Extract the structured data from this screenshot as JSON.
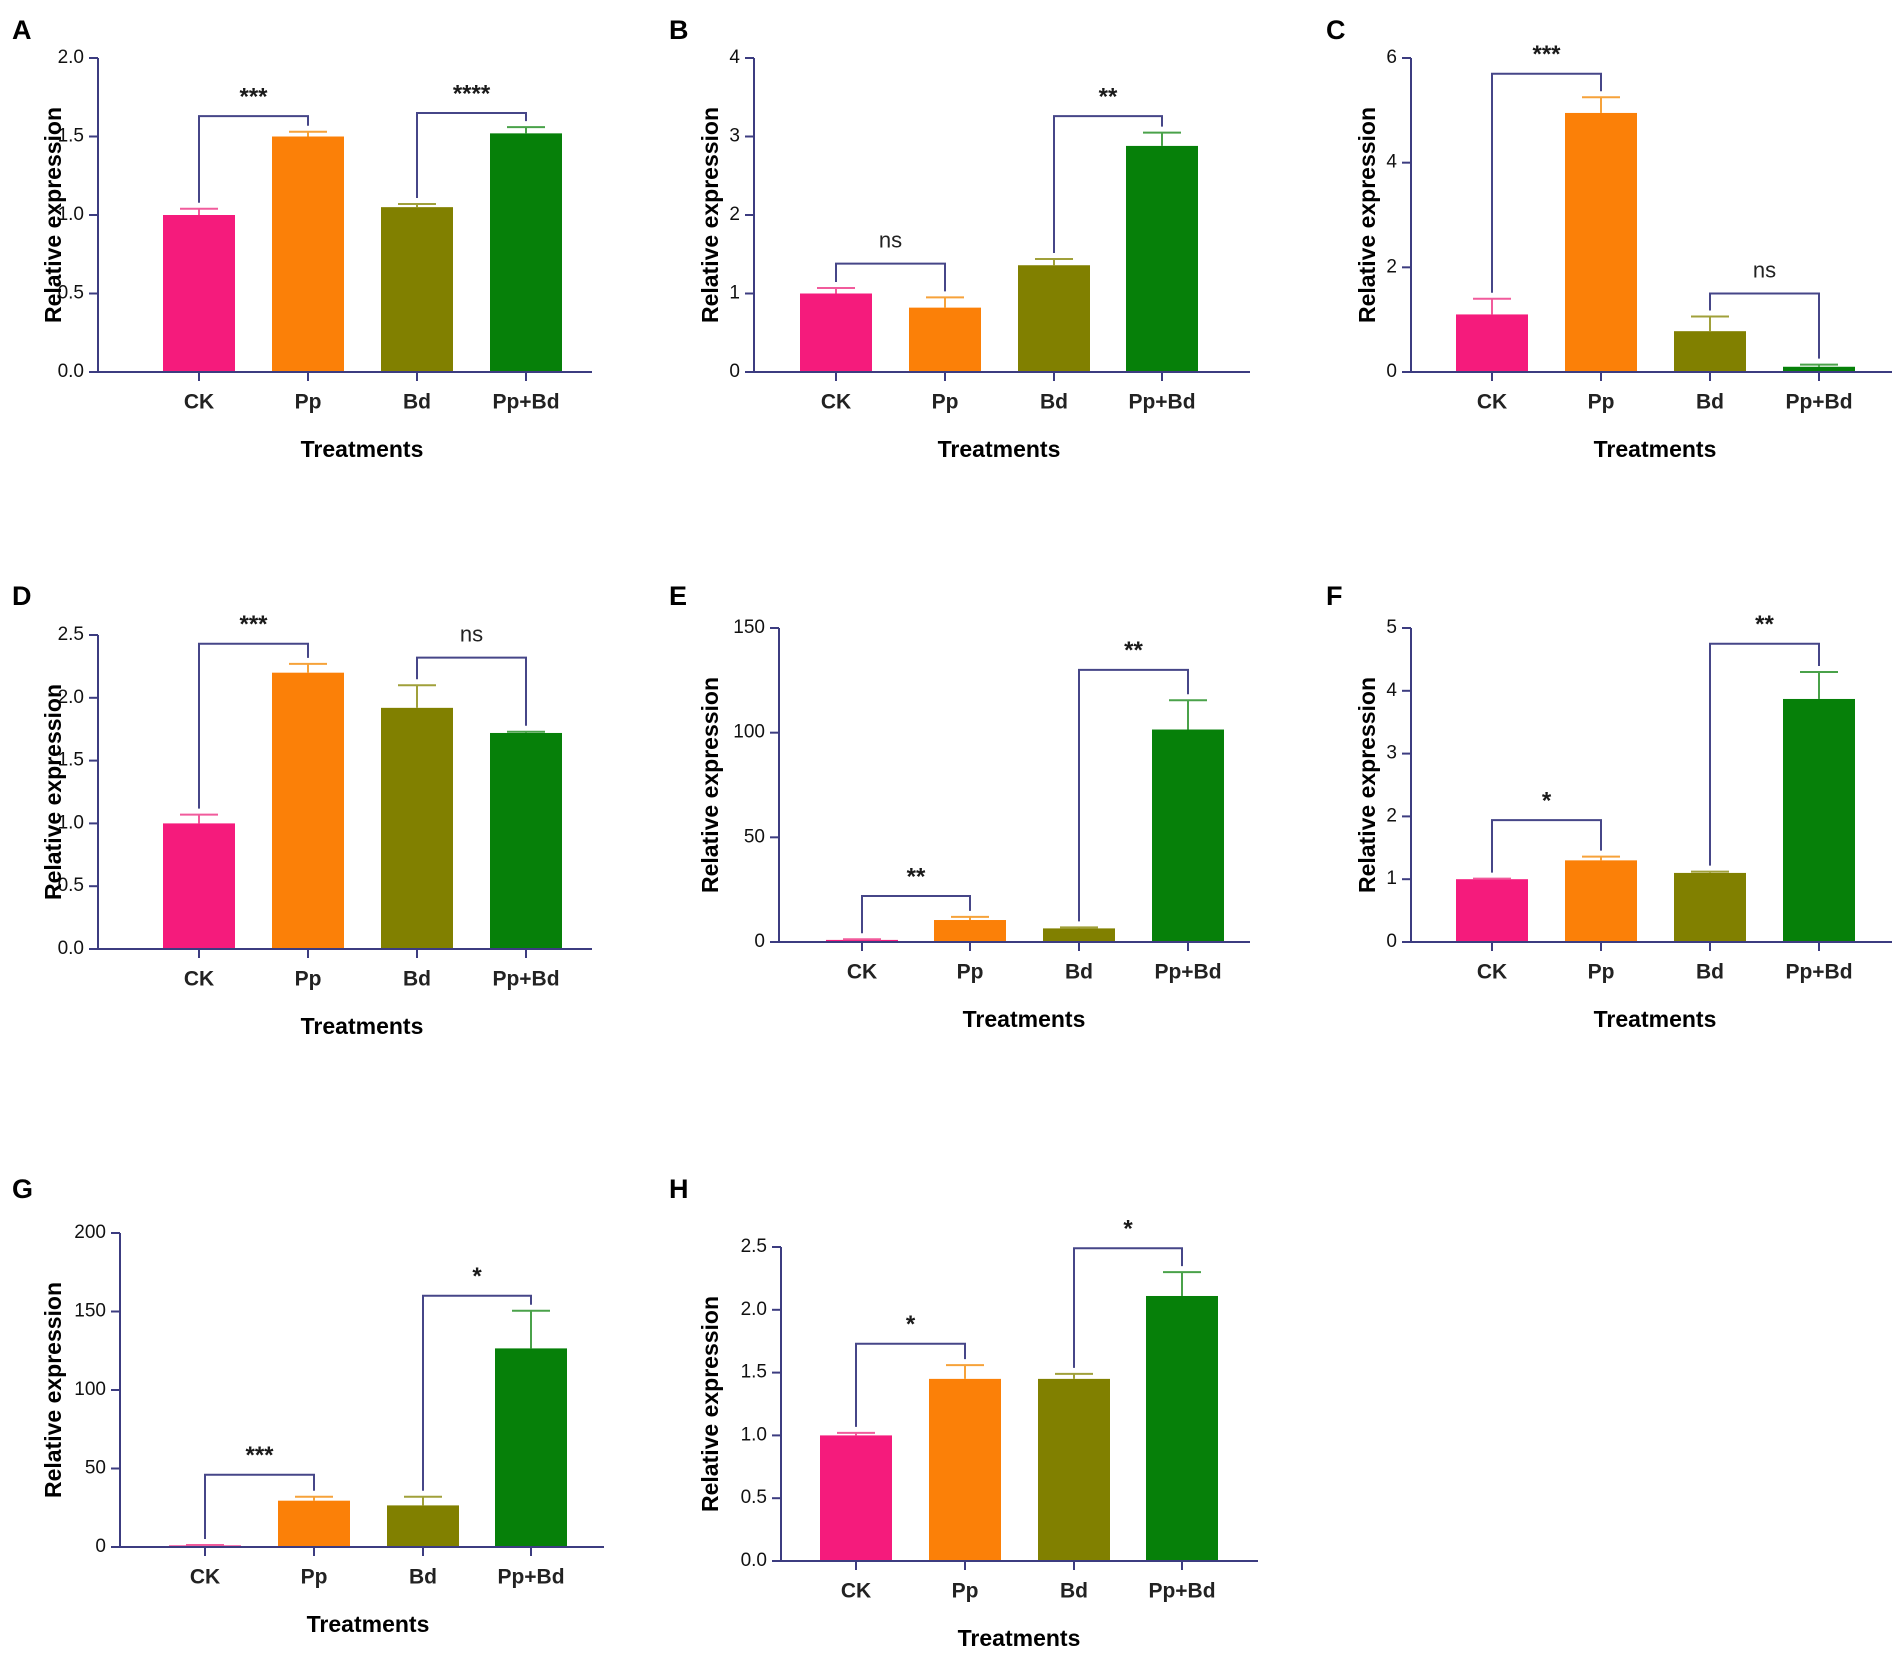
{
  "figure": {
    "colors": {
      "CK": "#f51b7c",
      "Pp": "#fb8008",
      "Bd": "#818000",
      "Pp+Bd": "#068009",
      "CK_err": "#f15b9c",
      "Pp_err": "#f6a23a",
      "Bd_err": "#a0a03a",
      "Pp+Bd_err": "#4aa24a",
      "axis": "#3c3c80",
      "bracket": "#464688"
    }
  },
  "chart_data": [
    {
      "panel": "A",
      "type": "bar",
      "categories": [
        "CK",
        "Pp",
        "Bd",
        "Pp+Bd"
      ],
      "values": [
        1.0,
        1.5,
        1.05,
        1.52
      ],
      "errors": [
        0.04,
        0.03,
        0.02,
        0.04
      ],
      "yticks": [
        0.0,
        0.5,
        1.0,
        1.5,
        2.0
      ],
      "ytick_labels": [
        "0.0",
        "0.5",
        "1.0",
        "1.5",
        "2.0"
      ],
      "ylim": [
        0,
        2.0
      ],
      "xlabel": "Treatments",
      "ylabel": "Relative expression",
      "significance": [
        {
          "from": "CK",
          "to": "Pp",
          "label": "***",
          "top": 1.63
        },
        {
          "from": "Bd",
          "to": "Pp+Bd",
          "label": "****",
          "top": 1.65
        }
      ]
    },
    {
      "panel": "B",
      "type": "bar",
      "categories": [
        "CK",
        "Pp",
        "Bd",
        "Pp+Bd"
      ],
      "values": [
        1.0,
        0.82,
        1.36,
        2.88
      ],
      "errors": [
        0.07,
        0.13,
        0.08,
        0.17
      ],
      "yticks": [
        0,
        1,
        2,
        3,
        4
      ],
      "ytick_labels": [
        "0",
        "1",
        "2",
        "3",
        "4"
      ],
      "ylim": [
        0,
        4
      ],
      "xlabel": "Treatments",
      "ylabel": "Relative expression",
      "significance": [
        {
          "from": "CK",
          "to": "Pp",
          "label": "ns",
          "top": 1.38
        },
        {
          "from": "Bd",
          "to": "Pp+Bd",
          "label": "**",
          "top": 3.26
        }
      ]
    },
    {
      "panel": "C",
      "type": "bar",
      "categories": [
        "CK",
        "Pp",
        "Bd",
        "Pp+Bd"
      ],
      "values": [
        1.1,
        4.95,
        0.78,
        0.1
      ],
      "errors": [
        0.3,
        0.3,
        0.28,
        0.04
      ],
      "yticks": [
        0,
        2,
        4,
        6
      ],
      "ytick_labels": [
        "0",
        "2",
        "4",
        "6"
      ],
      "ylim": [
        0,
        6
      ],
      "xlabel": "Treatments",
      "ylabel": "Relative expression",
      "significance": [
        {
          "from": "CK",
          "to": "Pp",
          "label": "***",
          "top": 5.7
        },
        {
          "from": "Bd",
          "to": "Pp+Bd",
          "label": "ns",
          "top": 1.5
        }
      ]
    },
    {
      "panel": "D",
      "type": "bar",
      "categories": [
        "CK",
        "Pp",
        "Bd",
        "Pp+Bd"
      ],
      "values": [
        1.0,
        2.2,
        1.92,
        1.72
      ],
      "errors": [
        0.07,
        0.07,
        0.18,
        0.01
      ],
      "yticks": [
        0.0,
        0.5,
        1.0,
        1.5,
        2.0,
        2.5
      ],
      "ytick_labels": [
        "0.0",
        "0.5",
        "1.0",
        "1.5",
        "2.0",
        "2.5"
      ],
      "ylim": [
        0,
        2.5
      ],
      "xlabel": "Treatments",
      "ylabel": "Relative expression",
      "significance": [
        {
          "from": "CK",
          "to": "Pp",
          "label": "***",
          "top": 2.43
        },
        {
          "from": "Bd",
          "to": "Pp+Bd",
          "label": "ns",
          "top": 2.32
        }
      ]
    },
    {
      "panel": "E",
      "type": "bar",
      "categories": [
        "CK",
        "Pp",
        "Bd",
        "Pp+Bd"
      ],
      "values": [
        1.0,
        10.5,
        6.5,
        101.5
      ],
      "errors": [
        0.3,
        1.5,
        0.5,
        14.0
      ],
      "yticks": [
        0,
        50,
        100,
        150
      ],
      "ytick_labels": [
        "0",
        "50",
        "100",
        "150"
      ],
      "ylim": [
        0,
        150
      ],
      "xlabel": "Treatments",
      "ylabel": "Relative expression",
      "significance": [
        {
          "from": "CK",
          "to": "Pp",
          "label": "**",
          "top": 22
        },
        {
          "from": "Bd",
          "to": "Pp+Bd",
          "label": "**",
          "top": 130
        }
      ]
    },
    {
      "panel": "F",
      "type": "bar",
      "categories": [
        "CK",
        "Pp",
        "Bd",
        "Pp+Bd"
      ],
      "values": [
        1.0,
        1.3,
        1.1,
        3.87
      ],
      "errors": [
        0.01,
        0.06,
        0.02,
        0.43
      ],
      "yticks": [
        0,
        1,
        2,
        3,
        4,
        5
      ],
      "ytick_labels": [
        "0",
        "1",
        "2",
        "3",
        "4",
        "5"
      ],
      "ylim": [
        0,
        5
      ],
      "xlabel": "Treatments",
      "ylabel": "Relative expression",
      "significance": [
        {
          "from": "CK",
          "to": "Pp",
          "label": "*",
          "top": 1.94
        },
        {
          "from": "Bd",
          "to": "Pp+Bd",
          "label": "**",
          "top": 4.75
        }
      ]
    },
    {
      "panel": "G",
      "type": "bar",
      "categories": [
        "CK",
        "Pp",
        "Bd",
        "Pp+Bd"
      ],
      "values": [
        1.0,
        29.5,
        26.5,
        126.5
      ],
      "errors": [
        0.3,
        2.5,
        5.5,
        24.0
      ],
      "yticks": [
        0,
        50,
        100,
        150,
        200
      ],
      "ytick_labels": [
        "0",
        "50",
        "100",
        "150",
        "200"
      ],
      "ylim": [
        0,
        200
      ],
      "xlabel": "Treatments",
      "ylabel": "Relative expression",
      "significance": [
        {
          "from": "CK",
          "to": "Pp",
          "label": "***",
          "top": 46
        },
        {
          "from": "Bd",
          "to": "Pp+Bd",
          "label": "*",
          "top": 160
        }
      ]
    },
    {
      "panel": "H",
      "type": "bar",
      "categories": [
        "CK",
        "Pp",
        "Bd",
        "Pp+Bd"
      ],
      "values": [
        1.0,
        1.45,
        1.45,
        2.11
      ],
      "errors": [
        0.02,
        0.11,
        0.04,
        0.19
      ],
      "yticks": [
        0.0,
        0.5,
        1.0,
        1.5,
        2.0,
        2.5
      ],
      "ytick_labels": [
        "0.0",
        "0.5",
        "1.0",
        "1.5",
        "2.0",
        "2.5"
      ],
      "ylim": [
        0,
        2.5
      ],
      "xlabel": "Treatments",
      "ylabel": "Relative expression",
      "significance": [
        {
          "from": "CK",
          "to": "Pp",
          "label": "*",
          "top": 1.73
        },
        {
          "from": "Bd",
          "to": "Pp+Bd",
          "label": "*",
          "top": 2.49
        }
      ]
    }
  ]
}
